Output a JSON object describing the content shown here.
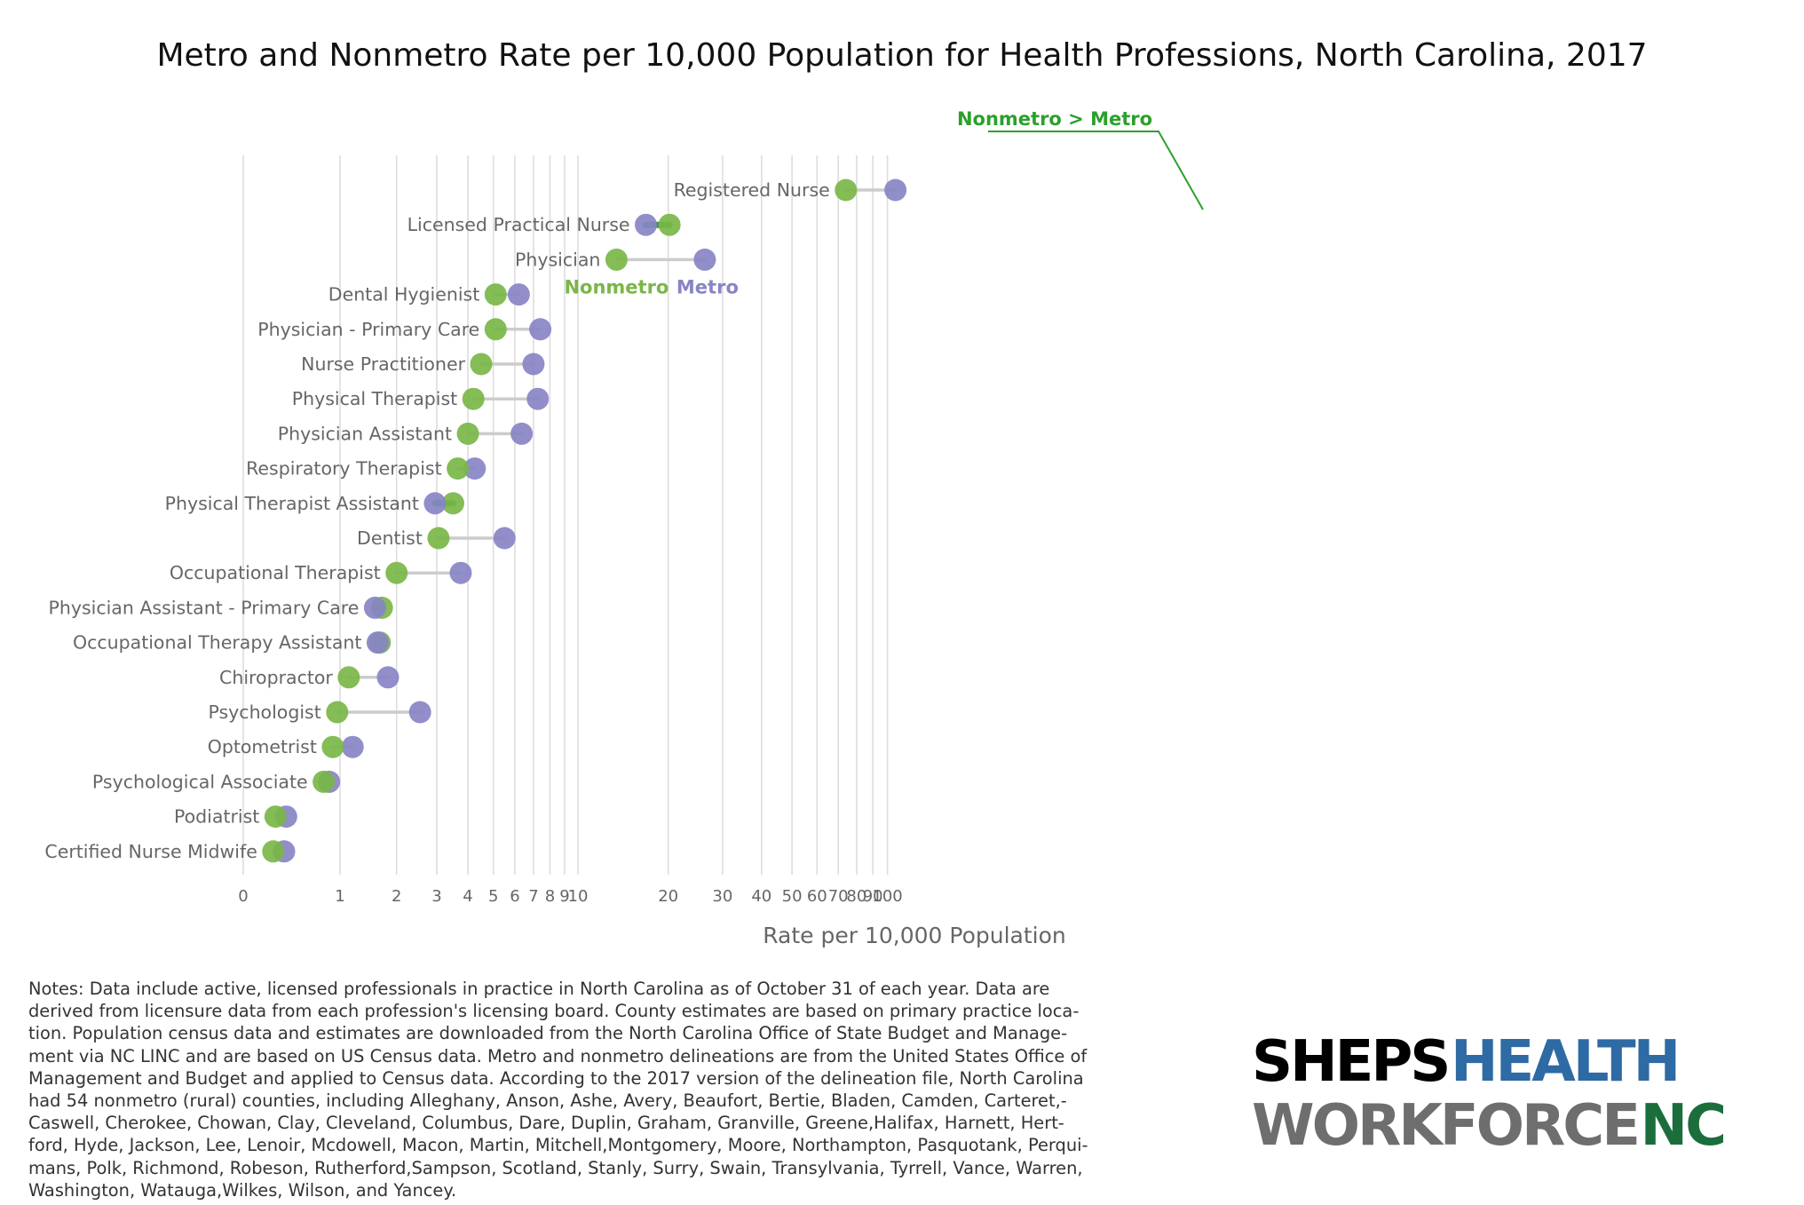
{
  "chart_data": {
    "type": "dumbbell",
    "title": "Metro and Nonmetro Rate per 10,000 Population for Health Professions, North Carolina, 2017",
    "xlabel": "Rate per 10,000 Population",
    "ylabel": "",
    "x_scale": "log(1+x)",
    "xlim": [
      0,
      110
    ],
    "x_ticks": [
      0,
      1,
      2,
      3,
      4,
      5,
      6,
      7,
      8,
      9,
      10,
      20,
      30,
      40,
      50,
      60,
      70,
      80,
      90,
      100
    ],
    "x_tick_labels": [
      "0",
      "1",
      "2",
      "3",
      "4",
      "5",
      "6",
      "7",
      "8",
      "9",
      "10",
      "20",
      "30",
      "40",
      "50",
      "60",
      "70",
      "80",
      "90",
      "100"
    ],
    "grid": "vertical",
    "series": [
      {
        "name": "Nonmetro",
        "color": "#7ab648"
      },
      {
        "name": "Metro",
        "color": "#8884c5"
      }
    ],
    "annotations": {
      "nonmetro_label": "Nonmetro",
      "metro_label": "Metro",
      "highlight_label": "Nonmetro > Metro"
    },
    "colors": {
      "nonmetro": "#7ab648",
      "metro": "#8884c5",
      "connector": "#cccccc",
      "highlight": "#2ca02c",
      "gridline": "#dddddd"
    },
    "rows": [
      {
        "label": "Registered Nurse",
        "nonmetro": 74.0,
        "metro": 106.0
      },
      {
        "label": "Licensed Practical Nurse",
        "nonmetro": 20.2,
        "metro": 16.9
      },
      {
        "label": "Physician",
        "nonmetro": 13.5,
        "metro": 26.3
      },
      {
        "label": "Dental Hygienist",
        "nonmetro": 5.1,
        "metro": 6.2
      },
      {
        "label": "Physician - Primary Care",
        "nonmetro": 5.1,
        "metro": 7.4
      },
      {
        "label": "Nurse Practitioner",
        "nonmetro": 4.5,
        "metro": 7.0
      },
      {
        "label": "Physical Therapist",
        "nonmetro": 4.2,
        "metro": 7.25
      },
      {
        "label": "Physician Assistant",
        "nonmetro": 4.0,
        "metro": 6.35
      },
      {
        "label": "Respiratory Therapist",
        "nonmetro": 3.65,
        "metro": 4.25
      },
      {
        "label": "Physical Therapist Assistant",
        "nonmetro": 3.5,
        "metro": 2.95
      },
      {
        "label": "Dentist",
        "nonmetro": 3.05,
        "metro": 5.5
      },
      {
        "label": "Occupational Therapist",
        "nonmetro": 2.0,
        "metro": 3.75
      },
      {
        "label": "Physician Assistant - Primary Care",
        "nonmetro": 1.7,
        "metro": 1.57
      },
      {
        "label": "Occupational Therapy Assistant",
        "nonmetro": 1.66,
        "metro": 1.62
      },
      {
        "label": "Chiropractor",
        "nonmetro": 1.13,
        "metro": 1.82
      },
      {
        "label": "Psychologist",
        "nonmetro": 0.96,
        "metro": 2.55
      },
      {
        "label": "Optometrist",
        "nonmetro": 0.9,
        "metro": 1.19
      },
      {
        "label": "Psychological Associate",
        "nonmetro": 0.78,
        "metro": 0.85
      },
      {
        "label": "Podiatrist",
        "nonmetro": 0.26,
        "metro": 0.36
      },
      {
        "label": "Certified Nurse Midwife",
        "nonmetro": 0.24,
        "metro": 0.34
      }
    ]
  },
  "notes": "Notes: Data include active, licensed professionals in practice in North Carolina as of October 31 of each year. Data are\nderived from licensure data from each profession's licensing board. County estimates are based on primary practice loca-\ntion. Population census data and estimates are downloaded from the North Carolina Office of State Budget and Manage-\nment via NC LINC and are based on US Census data. Metro and nonmetro delineations are from the United States Office of\nManagement and Budget and applied to Census data. According to the 2017 version of the delineation file, North Carolina\nhad 54 nonmetro (rural) counties, including Alleghany, Anson, Ashe, Avery, Beaufort, Bertie, Bladen, Camden, Carteret,-\nCaswell, Cherokee, Chowan, Clay, Cleveland, Columbus, Dare, Duplin, Graham, Granville, Greene,Halifax, Harnett, Hert-\nford, Hyde, Jackson, Lee, Lenoir, Mcdowell, Macon, Martin, Mitchell,Montgomery, Moore, Northampton, Pasquotank, Perqui-\nmans, Polk, Richmond, Robeson, Rutherford,Sampson, Scotland, Stanly, Surry, Swain, Transylvania, Tyrrell, Vance, Warren,\nWashington, Watauga,Wilkes, Wilson, and Yancey.",
  "logo": {
    "line1_a": "SHEPS",
    "line1_b": "HEALTH",
    "line2_a": "WORKFORCE",
    "line2_b": "NC",
    "colors": {
      "sheps": "#000000",
      "health": "#2e6aa3",
      "workforce": "#6e6e6e",
      "nc": "#1b6e3c"
    }
  }
}
